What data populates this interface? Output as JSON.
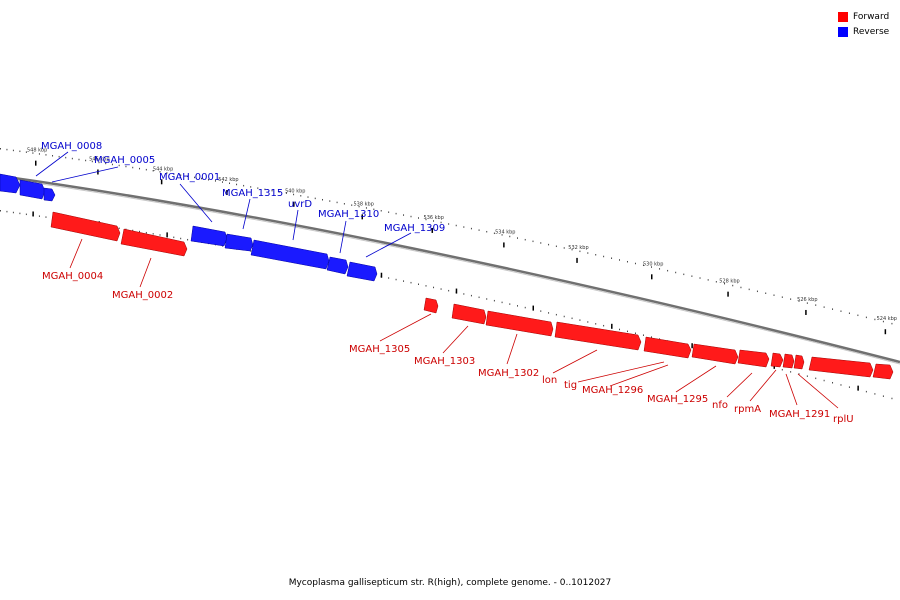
{
  "legend": {
    "forward_label": "Forward",
    "reverse_label": "Reverse",
    "forward_color": "#ff0000",
    "reverse_color": "#0000ff"
  },
  "caption": "Mycoplasma gallisepticum str. R(high), complete genome. - 0..1012027",
  "axis": {
    "unit": "kbp",
    "major_ticks_kbp": [
      548,
      546,
      544,
      542,
      540,
      538,
      536,
      534,
      532,
      530,
      528,
      526,
      524
    ]
  },
  "genes": [
    {
      "name": "MGAH_0008",
      "strand": "reverse"
    },
    {
      "name": "MGAH_0005",
      "strand": "reverse"
    },
    {
      "name": "MGAH_0001",
      "strand": "reverse"
    },
    {
      "name": "MGAH_1315",
      "strand": "reverse"
    },
    {
      "name": "uvrD",
      "strand": "reverse"
    },
    {
      "name": "MGAH_1310",
      "strand": "reverse"
    },
    {
      "name": "MGAH_1309",
      "strand": "reverse"
    },
    {
      "name": "MGAH_0004",
      "strand": "forward"
    },
    {
      "name": "MGAH_0002",
      "strand": "forward"
    },
    {
      "name": "MGAH_1305",
      "strand": "forward"
    },
    {
      "name": "MGAH_1303",
      "strand": "forward"
    },
    {
      "name": "MGAH_1302",
      "strand": "forward"
    },
    {
      "name": "lon",
      "strand": "forward"
    },
    {
      "name": "tig",
      "strand": "forward"
    },
    {
      "name": "MGAH_1296",
      "strand": "forward"
    },
    {
      "name": "MGAH_1295",
      "strand": "forward"
    },
    {
      "name": "nfo",
      "strand": "forward"
    },
    {
      "name": "rpmA",
      "strand": "forward"
    },
    {
      "name": "MGAH_1291",
      "strand": "forward"
    },
    {
      "name": "rplU",
      "strand": "forward"
    }
  ]
}
